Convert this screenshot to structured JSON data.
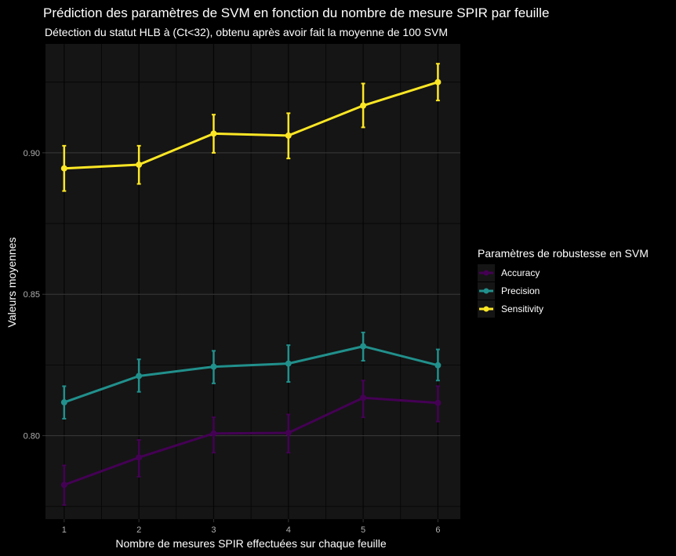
{
  "chart_data": {
    "type": "line",
    "title": "Prédiction des paramètres de SVM en fonction du nombre de mesure SPIR par feuille",
    "subtitle": "Détection du statut HLB à (Ct<32), obtenu après avoir fait la moyenne de 100 SVM",
    "xlabel": "Nombre de mesures SPIR effectuées sur chaque feuille",
    "ylabel": "Valeurs moyennes",
    "x": [
      1,
      2,
      3,
      4,
      5,
      6
    ],
    "x_ticks": [
      "1",
      "2",
      "3",
      "4",
      "5",
      "6"
    ],
    "xlim": [
      0.75,
      6.3
    ],
    "ylim": [
      0.7705,
      0.9385
    ],
    "y_ticks": [
      0.8,
      0.85,
      0.9
    ],
    "y_tick_labels": [
      "0.80",
      "0.85",
      "0.90"
    ],
    "legend": {
      "title": "Paramètres de robustesse en SVM",
      "position": "right"
    },
    "series": [
      {
        "name": "Accuracy",
        "color": "#440154",
        "values": [
          0.7826,
          0.7923,
          0.8008,
          0.801,
          0.8134,
          0.8116
        ],
        "error_low": [
          0.7755,
          0.7855,
          0.794,
          0.794,
          0.8065,
          0.805
        ],
        "error_high": [
          0.7895,
          0.7985,
          0.8065,
          0.8075,
          0.8195,
          0.8175
        ]
      },
      {
        "name": "Precision",
        "color": "#21908C",
        "values": [
          0.8118,
          0.8211,
          0.8244,
          0.8255,
          0.8316,
          0.8249
        ],
        "error_low": [
          0.806,
          0.8155,
          0.8185,
          0.819,
          0.8265,
          0.8195
        ],
        "error_high": [
          0.8175,
          0.827,
          0.83,
          0.832,
          0.8365,
          0.8305
        ]
      },
      {
        "name": "Sensitivity",
        "color": "#FDE725",
        "values": [
          0.8945,
          0.8958,
          0.9068,
          0.9061,
          0.9167,
          0.925
        ],
        "error_low": [
          0.8865,
          0.889,
          0.9,
          0.898,
          0.909,
          0.9185
        ],
        "error_high": [
          0.9025,
          0.9025,
          0.9135,
          0.914,
          0.9245,
          0.9315
        ]
      }
    ],
    "grid": true,
    "background": "#151515"
  }
}
